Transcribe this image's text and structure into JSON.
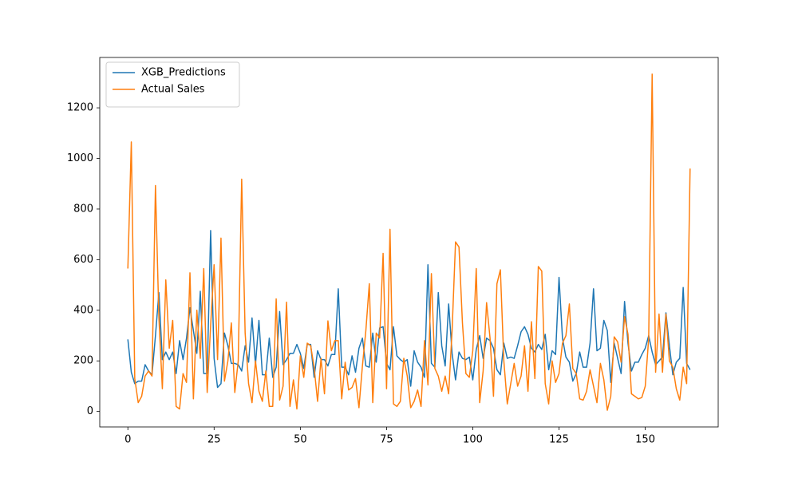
{
  "chart_data": {
    "type": "line",
    "x": [
      0,
      1,
      2,
      3,
      4,
      5,
      6,
      7,
      8,
      9,
      10,
      11,
      12,
      13,
      14,
      15,
      16,
      17,
      18,
      19,
      20,
      21,
      22,
      23,
      24,
      25,
      26,
      27,
      28,
      29,
      30,
      31,
      32,
      33,
      34,
      35,
      36,
      37,
      38,
      39,
      40,
      41,
      42,
      43,
      44,
      45,
      46,
      47,
      48,
      49,
      50,
      51,
      52,
      53,
      54,
      55,
      56,
      57,
      58,
      59,
      60,
      61,
      62,
      63,
      64,
      65,
      66,
      67,
      68,
      69,
      70,
      71,
      72,
      73,
      74,
      75,
      76,
      77,
      78,
      79,
      80,
      81,
      82,
      83,
      84,
      85,
      86,
      87,
      88,
      89,
      90,
      91,
      92,
      93,
      94,
      95,
      96,
      97,
      98,
      99,
      100,
      101,
      102,
      103,
      104,
      105,
      106,
      107,
      108,
      109,
      110,
      111,
      112,
      113,
      114,
      115,
      116,
      117,
      118,
      119,
      120,
      121,
      122,
      123,
      124,
      125,
      126,
      127,
      128,
      129,
      130,
      131,
      132,
      133,
      134,
      135,
      136,
      137,
      138,
      139,
      140,
      141,
      142,
      143,
      144,
      145,
      146,
      147,
      148,
      149,
      150,
      151,
      152,
      153,
      154,
      155,
      156,
      157,
      158,
      159,
      160,
      161,
      162,
      163
    ],
    "series": [
      {
        "name": "XGB_Predictions",
        "color": "#1f77b4",
        "values": [
          285,
          155,
          110,
          120,
          120,
          185,
          160,
          145,
          300,
          470,
          205,
          235,
          205,
          235,
          150,
          280,
          205,
          290,
          410,
          320,
          230,
          475,
          150,
          150,
          715,
          210,
          95,
          110,
          310,
          260,
          190,
          190,
          185,
          160,
          260,
          195,
          370,
          185,
          360,
          145,
          145,
          290,
          135,
          175,
          395,
          185,
          205,
          230,
          230,
          265,
          230,
          170,
          265,
          265,
          135,
          240,
          205,
          205,
          180,
          225,
          225,
          485,
          175,
          175,
          145,
          220,
          155,
          250,
          290,
          180,
          175,
          310,
          195,
          330,
          335,
          190,
          165,
          335,
          220,
          205,
          195,
          205,
          100,
          240,
          195,
          175,
          135,
          580,
          190,
          175,
          470,
          260,
          180,
          425,
          230,
          125,
          235,
          210,
          205,
          215,
          125,
          245,
          300,
          210,
          290,
          280,
          250,
          165,
          145,
          270,
          210,
          215,
          210,
          260,
          315,
          335,
          305,
          250,
          235,
          265,
          245,
          305,
          165,
          240,
          225,
          530,
          290,
          215,
          195,
          120,
          150,
          235,
          175,
          175,
          270,
          485,
          240,
          250,
          360,
          320,
          115,
          270,
          210,
          150,
          435,
          270,
          160,
          195,
          195,
          225,
          250,
          300,
          235,
          185,
          200,
          215,
          390,
          260,
          145,
          195,
          210,
          490,
          190,
          165
        ]
      },
      {
        "name": "Actual Sales",
        "color": "#ff7f0e",
        "values": [
          565,
          1065,
          130,
          35,
          60,
          140,
          160,
          140,
          893,
          370,
          90,
          520,
          250,
          360,
          20,
          10,
          150,
          115,
          548,
          50,
          400,
          210,
          565,
          75,
          340,
          580,
          205,
          685,
          120,
          200,
          350,
          75,
          200,
          918,
          310,
          110,
          35,
          200,
          80,
          40,
          160,
          20,
          20,
          445,
          45,
          100,
          432,
          20,
          125,
          10,
          220,
          135,
          270,
          260,
          175,
          40,
          210,
          70,
          358,
          240,
          280,
          280,
          50,
          195,
          85,
          95,
          130,
          15,
          180,
          320,
          505,
          35,
          310,
          290,
          625,
          90,
          720,
          30,
          20,
          40,
          210,
          140,
          15,
          40,
          85,
          20,
          280,
          105,
          545,
          170,
          140,
          80,
          140,
          70,
          320,
          670,
          650,
          350,
          150,
          135,
          240,
          565,
          35,
          160,
          430,
          290,
          60,
          505,
          560,
          200,
          30,
          110,
          190,
          100,
          140,
          260,
          80,
          355,
          130,
          573,
          555,
          110,
          30,
          200,
          115,
          150,
          270,
          300,
          425,
          170,
          150,
          50,
          45,
          80,
          165,
          100,
          35,
          190,
          125,
          5,
          60,
          295,
          275,
          195,
          375,
          305,
          70,
          60,
          50,
          55,
          100,
          290,
          1333,
          155,
          385,
          155,
          385,
          200,
          175,
          90,
          45,
          175,
          110,
          960
        ]
      }
    ],
    "xlim": [
      -8.15,
      171.15
    ],
    "xticks": [
      0,
      25,
      50,
      75,
      100,
      125,
      150
    ],
    "ylim": [
      -61,
      1399
    ],
    "yticks": [
      0,
      200,
      400,
      600,
      800,
      1000,
      1200
    ],
    "legend": "upper left",
    "grid": false
  }
}
